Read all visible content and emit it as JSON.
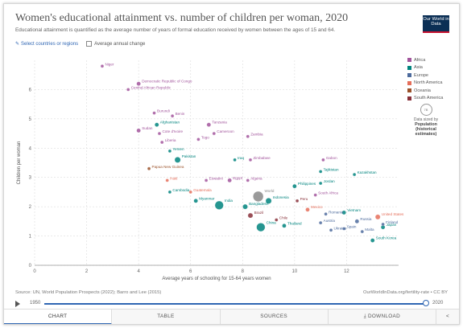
{
  "header": {
    "title": "Women's educational attainment vs. number of children per woman, 2020",
    "subtitle": "Educational attainment is quantified as the average number of years of formal education received by women between the ages of 15 and 64.",
    "logo": "Our World in Data"
  },
  "controls": {
    "select_label": "Select countries or regions",
    "average_change_label": "Average annual change"
  },
  "legend": {
    "items": [
      {
        "label": "Africa",
        "color": "#a2559c"
      },
      {
        "label": "Asia",
        "color": "#00847e"
      },
      {
        "label": "Europe",
        "color": "#4c6a9c"
      },
      {
        "label": "North America",
        "color": "#e56e5a"
      },
      {
        "label": "Oceania",
        "color": "#9a5129"
      },
      {
        "label": "South America",
        "color": "#883039"
      }
    ],
    "size_value": "7B",
    "size_note": "Data sized by",
    "size_title": "Population (historical estimates)"
  },
  "chart_data": {
    "type": "scatter",
    "title": "Women's educational attainment vs. number of children per woman, 2020",
    "xlabel": "Average years of schooling for 15-64 years women",
    "ylabel": "Children per woman",
    "xlim": [
      0,
      14
    ],
    "ylim": [
      0,
      7
    ],
    "xticks": [
      0,
      2,
      4,
      6,
      8,
      10,
      12
    ],
    "yticks": [
      0,
      1,
      2,
      3,
      4,
      5,
      6
    ],
    "grid": true,
    "legend_position": "right",
    "points": [
      {
        "label": "Niger",
        "x": 2.6,
        "y": 6.8,
        "region": "Africa",
        "size": 2
      },
      {
        "label": "Democratic Republic of Congo",
        "x": 4.0,
        "y": 6.2,
        "region": "Africa",
        "size": 3
      },
      {
        "label": "Central African Republic",
        "x": 3.6,
        "y": 6.0,
        "region": "Africa",
        "size": 2
      },
      {
        "label": "Burundi",
        "x": 4.6,
        "y": 5.2,
        "region": "Africa",
        "size": 2
      },
      {
        "label": "Benin",
        "x": 5.3,
        "y": 5.1,
        "region": "Africa",
        "size": 2
      },
      {
        "label": "Afghanistan",
        "x": 4.7,
        "y": 4.8,
        "region": "Asia",
        "size": 3
      },
      {
        "label": "Sudan",
        "x": 4.0,
        "y": 4.6,
        "region": "Africa",
        "size": 3
      },
      {
        "label": "Cote d'Ivoire",
        "x": 4.8,
        "y": 4.5,
        "region": "Africa",
        "size": 2
      },
      {
        "label": "Tanzania",
        "x": 6.7,
        "y": 4.8,
        "region": "Africa",
        "size": 3
      },
      {
        "label": "Cameroon",
        "x": 6.9,
        "y": 4.5,
        "region": "Africa",
        "size": 2
      },
      {
        "label": "Togo",
        "x": 6.3,
        "y": 4.3,
        "region": "Africa",
        "size": 2
      },
      {
        "label": "Zambia",
        "x": 8.2,
        "y": 4.4,
        "region": "Africa",
        "size": 2
      },
      {
        "label": "Liberia",
        "x": 4.9,
        "y": 4.2,
        "region": "Africa",
        "size": 2
      },
      {
        "label": "Yemen",
        "x": 5.2,
        "y": 3.9,
        "region": "Asia",
        "size": 2
      },
      {
        "label": "Pakistan",
        "x": 5.5,
        "y": 3.6,
        "region": "Asia",
        "size": 5
      },
      {
        "label": "Iraq",
        "x": 7.7,
        "y": 3.6,
        "region": "Asia",
        "size": 2
      },
      {
        "label": "Zimbabwe",
        "x": 8.3,
        "y": 3.6,
        "region": "Africa",
        "size": 2
      },
      {
        "label": "Papua New Guinea",
        "x": 4.4,
        "y": 3.3,
        "region": "Oceania",
        "size": 2
      },
      {
        "label": "Egypt",
        "x": 7.5,
        "y": 2.9,
        "region": "Africa",
        "size": 3
      },
      {
        "label": "Algeria",
        "x": 8.2,
        "y": 2.9,
        "region": "Africa",
        "size": 2
      },
      {
        "label": "Eswatini",
        "x": 6.6,
        "y": 2.9,
        "region": "Africa",
        "size": 2
      },
      {
        "label": "Haiti",
        "x": 5.1,
        "y": 2.9,
        "region": "North America",
        "size": 2
      },
      {
        "label": "Gabon",
        "x": 11.1,
        "y": 3.6,
        "region": "Africa",
        "size": 2
      },
      {
        "label": "Tajikistan",
        "x": 11.0,
        "y": 3.2,
        "region": "Asia",
        "size": 2
      },
      {
        "label": "Kazakhstan",
        "x": 12.3,
        "y": 3.1,
        "region": "Asia",
        "size": 2
      },
      {
        "label": "Philippines",
        "x": 10.0,
        "y": 2.7,
        "region": "Asia",
        "size": 3
      },
      {
        "label": "Jordan",
        "x": 11.0,
        "y": 2.8,
        "region": "Asia",
        "size": 2
      },
      {
        "label": "Cambodia",
        "x": 5.2,
        "y": 2.5,
        "region": "Asia",
        "size": 2
      },
      {
        "label": "Guatemala",
        "x": 6.0,
        "y": 2.5,
        "region": "North America",
        "size": 2
      },
      {
        "label": "Myanmar",
        "x": 6.2,
        "y": 2.2,
        "region": "Asia",
        "size": 3
      },
      {
        "label": "India",
        "x": 7.1,
        "y": 2.05,
        "region": "Asia",
        "size": 8
      },
      {
        "label": "World",
        "x": 8.6,
        "y": 2.35,
        "region": "World",
        "size": 10
      },
      {
        "label": "Indonesia",
        "x": 9.0,
        "y": 2.2,
        "region": "Asia",
        "size": 5
      },
      {
        "label": "Peru",
        "x": 10.1,
        "y": 2.2,
        "region": "South America",
        "size": 2
      },
      {
        "label": "South Africa",
        "x": 10.8,
        "y": 2.4,
        "region": "Africa",
        "size": 2
      },
      {
        "label": "Bangladesh",
        "x": 8.1,
        "y": 2.0,
        "region": "Asia",
        "size": 4
      },
      {
        "label": "Mexico",
        "x": 10.5,
        "y": 1.9,
        "region": "North America",
        "size": 3
      },
      {
        "label": "Brazil",
        "x": 8.3,
        "y": 1.7,
        "region": "South America",
        "size": 4
      },
      {
        "label": "Chile",
        "x": 9.3,
        "y": 1.55,
        "region": "South America",
        "size": 2
      },
      {
        "label": "Romania",
        "x": 11.2,
        "y": 1.75,
        "region": "Europe",
        "size": 2
      },
      {
        "label": "Vietnam",
        "x": 11.9,
        "y": 1.8,
        "region": "Asia",
        "size": 3
      },
      {
        "label": "China",
        "x": 8.7,
        "y": 1.3,
        "region": "Asia",
        "size": 8
      },
      {
        "label": "Thailand",
        "x": 9.6,
        "y": 1.35,
        "region": "Asia",
        "size": 3
      },
      {
        "label": "Austria",
        "x": 11.0,
        "y": 1.45,
        "region": "Europe",
        "size": 2
      },
      {
        "label": "Ukraine",
        "x": 11.4,
        "y": 1.2,
        "region": "Europe",
        "size": 2
      },
      {
        "label": "Russia",
        "x": 12.4,
        "y": 1.5,
        "region": "Europe",
        "size": 3
      },
      {
        "label": "Malta",
        "x": 12.6,
        "y": 1.15,
        "region": "Europe",
        "size": 2
      },
      {
        "label": "Spain",
        "x": 11.9,
        "y": 1.25,
        "region": "Europe",
        "size": 2
      },
      {
        "label": "United States",
        "x": 13.2,
        "y": 1.65,
        "region": "North America",
        "size": 4
      },
      {
        "label": "Finland",
        "x": 13.4,
        "y": 1.4,
        "region": "Europe",
        "size": 2
      },
      {
        "label": "Japan",
        "x": 13.4,
        "y": 1.3,
        "region": "Asia",
        "size": 3
      },
      {
        "label": "South Korea",
        "x": 13.0,
        "y": 0.85,
        "region": "Asia",
        "size": 3
      }
    ]
  },
  "footer": {
    "source": "Source: UN, World Population Prospects (2022); Barro and Lee (2015)",
    "url": "OurWorldInData.org/fertility-rate • CC BY"
  },
  "timeline": {
    "start": "1950",
    "end": "2020"
  },
  "tabs": {
    "chart": "CHART",
    "table": "TABLE",
    "sources": "SOURCES",
    "download": "⤓ DOWNLOAD",
    "share": "<"
  }
}
